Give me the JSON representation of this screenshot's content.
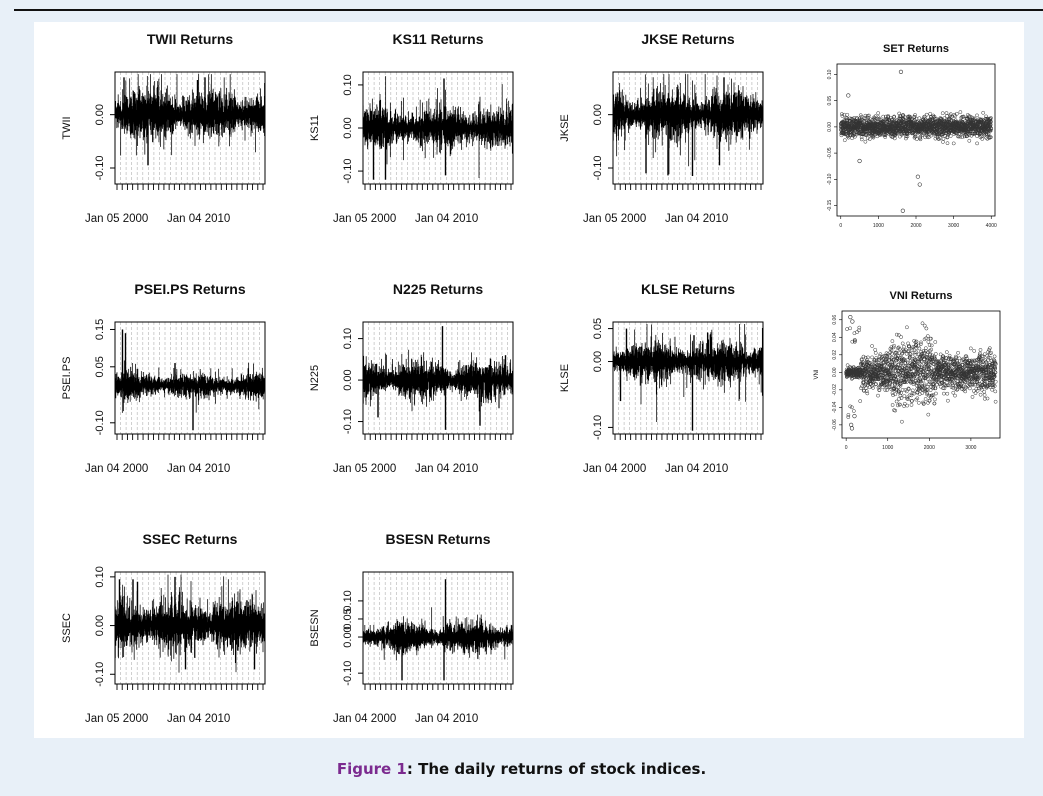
{
  "figure": {
    "label": "Figure 1",
    "separator": ": ",
    "text": "The daily returns of stock indices."
  },
  "chart_data": [
    {
      "id": "twii",
      "type": "line",
      "title": "TWII Returns",
      "ylabel": "TWII",
      "yticks": [
        -0.1,
        0.0
      ],
      "ytick_labels": [
        "-0.10",
        "0.00"
      ],
      "ylim": [
        -0.13,
        0.08
      ],
      "x_labels": [
        "Jan 05 2000",
        "Jan 04 2010"
      ],
      "amplitude": 0.035,
      "spikes": [
        [
          0.06,
          0.07
        ],
        [
          0.22,
          -0.095
        ],
        [
          0.55,
          0.065
        ],
        [
          0.6,
          0.07
        ]
      ]
    },
    {
      "id": "ks11",
      "type": "line",
      "title": "KS11 Returns",
      "ylabel": "KS11",
      "yticks": [
        -0.1,
        0.0,
        0.1
      ],
      "ytick_labels": [
        "-0.10",
        "0.00",
        "0.10"
      ],
      "ylim": [
        -0.13,
        0.13
      ],
      "x_labels": [
        "Jan 05 2000",
        "Jan 04 2010"
      ],
      "amplitude": 0.035,
      "spikes": [
        [
          0.07,
          -0.12
        ],
        [
          0.15,
          -0.12
        ],
        [
          0.54,
          0.115
        ],
        [
          0.55,
          -0.11
        ]
      ]
    },
    {
      "id": "jkse",
      "type": "line",
      "title": "JKSE Returns",
      "ylabel": "JKSE",
      "yticks": [
        -0.1,
        0.0
      ],
      "ytick_labels": [
        "-0.10",
        "0.00"
      ],
      "ylim": [
        -0.13,
        0.08
      ],
      "x_labels": [
        "Jan 05 2000",
        "Jan 04 2010"
      ],
      "amplitude": 0.035,
      "spikes": [
        [
          0.22,
          -0.11
        ],
        [
          0.53,
          -0.115
        ],
        [
          0.71,
          -0.095
        ],
        [
          0.74,
          0.07
        ]
      ]
    },
    {
      "id": "set",
      "type": "scatter",
      "title": "SET Returns",
      "ylabel": "",
      "yticks": [
        -0.15,
        -0.1,
        -0.05,
        0.0,
        0.05,
        0.1
      ],
      "ytick_labels": [
        "-0.15",
        "-0.10",
        "-0.05",
        "0.00",
        "0.05",
        "0.10"
      ],
      "ylim": [
        -0.17,
        0.12
      ],
      "xticks": [
        0,
        1000,
        2000,
        3000,
        4000
      ],
      "xtick_labels": [
        "0",
        "1000",
        "2000",
        "3000",
        "4000"
      ],
      "xlim": [
        -100,
        4100
      ],
      "n_points": 3850,
      "amplitude": 0.018,
      "outliers": [
        [
          1600,
          0.105
        ],
        [
          1650,
          -0.16
        ],
        [
          2050,
          -0.095
        ],
        [
          2100,
          -0.11
        ],
        [
          500,
          -0.065
        ],
        [
          200,
          0.06
        ]
      ]
    },
    {
      "id": "psei",
      "type": "line",
      "title": "PSEI.PS Returns",
      "ylabel": "PSEI.PS",
      "yticks": [
        -0.1,
        0.05,
        0.15
      ],
      "ytick_labels": [
        "-0.10",
        "0.05",
        "0.15"
      ],
      "ylim": [
        -0.13,
        0.17
      ],
      "x_labels": [
        "Jan 04 2000",
        "Jan 04 2010"
      ],
      "amplitude": 0.025,
      "spikes": [
        [
          0.05,
          0.15
        ],
        [
          0.07,
          0.14
        ],
        [
          0.4,
          0.06
        ],
        [
          0.52,
          -0.12
        ]
      ]
    },
    {
      "id": "n225",
      "type": "line",
      "title": "N225 Returns",
      "ylabel": "N225",
      "yticks": [
        -0.1,
        0.0,
        0.1
      ],
      "ytick_labels": [
        "-0.10",
        "0.00",
        "0.10"
      ],
      "ylim": [
        -0.13,
        0.14
      ],
      "x_labels": [
        "Jan 05 2000",
        "Jan 04 2010"
      ],
      "amplitude": 0.035,
      "spikes": [
        [
          0.1,
          -0.09
        ],
        [
          0.53,
          0.13
        ],
        [
          0.55,
          -0.12
        ],
        [
          0.78,
          -0.11
        ],
        [
          0.95,
          0.06
        ]
      ]
    },
    {
      "id": "klse",
      "type": "line",
      "title": "KLSE Returns",
      "ylabel": "KLSE",
      "yticks": [
        -0.1,
        0.0,
        0.05
      ],
      "ytick_labels": [
        "-0.10",
        "0.00",
        "0.05"
      ],
      "ylim": [
        -0.11,
        0.06
      ],
      "x_labels": [
        "Jan 04 2000",
        "Jan 04 2010"
      ],
      "amplitude": 0.022,
      "spikes": [
        [
          0.05,
          -0.06
        ],
        [
          0.09,
          0.05
        ],
        [
          0.53,
          -0.105
        ],
        [
          0.54,
          0.04
        ]
      ]
    },
    {
      "id": "vni",
      "type": "scatter",
      "title": "VNI Returns",
      "ylabel": "VNI",
      "yticks": [
        -0.06,
        -0.04,
        -0.02,
        0.0,
        0.02,
        0.04,
        0.06
      ],
      "ytick_labels": [
        "-0.06",
        "-0.04",
        "-0.02",
        "0.00",
        "0.02",
        "0.04",
        "0.06"
      ],
      "ylim": [
        -0.075,
        0.07
      ],
      "xticks": [
        0,
        1000,
        2000,
        3000
      ],
      "xtick_labels": [
        "0",
        "1000",
        "2000",
        "3000"
      ],
      "xlim": [
        -100,
        3700
      ],
      "n_points": 3600,
      "amplitude": 0.025,
      "outliers": [
        [
          100,
          0.063
        ],
        [
          150,
          0.058
        ],
        [
          120,
          -0.06
        ],
        [
          140,
          -0.064
        ],
        [
          200,
          -0.05
        ]
      ]
    },
    {
      "id": "ssec",
      "type": "line",
      "title": "SSEC Returns",
      "ylabel": "SSEC",
      "yticks": [
        -0.1,
        0.0,
        0.1
      ],
      "ytick_labels": [
        "-0.10",
        "0.00",
        "0.10"
      ],
      "ylim": [
        -0.12,
        0.11
      ],
      "x_labels": [
        "Jan 05 2000",
        "Jan 04 2010"
      ],
      "amplitude": 0.04,
      "spikes": [
        [
          0.03,
          0.095
        ],
        [
          0.12,
          0.095
        ],
        [
          0.15,
          0.09
        ],
        [
          0.4,
          0.1
        ],
        [
          0.47,
          -0.09
        ],
        [
          0.93,
          -0.09
        ]
      ]
    },
    {
      "id": "bsesn",
      "type": "line",
      "title": "BSESN Returns",
      "ylabel": "BSESN",
      "yticks": [
        -0.1,
        0.0,
        0.05,
        0.1
      ],
      "ytick_labels": [
        "-0.10",
        "0.00",
        "0.05",
        "0.10"
      ],
      "ylim": [
        -0.13,
        0.18
      ],
      "x_labels": [
        "Jan 04 2000",
        "Jan 04 2010"
      ],
      "amplitude": 0.03,
      "spikes": [
        [
          0.26,
          -0.12
        ],
        [
          0.55,
          0.16
        ],
        [
          0.54,
          -0.12
        ]
      ]
    }
  ]
}
